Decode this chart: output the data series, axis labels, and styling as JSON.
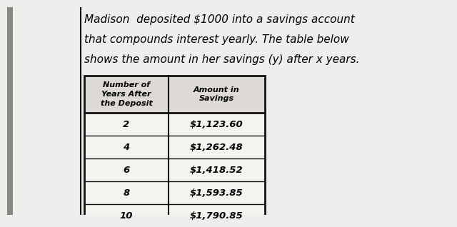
{
  "description_lines": [
    "Madison  deposited $1000 into a savings account",
    "that compounds interest yearly. The table below",
    "shows the amount in her savings (y) after x years."
  ],
  "col1_header": "Number of\nYears After\nthe Deposit",
  "col2_header": "Amount in\nSavings",
  "rows": [
    [
      "2",
      "$1,123.60"
    ],
    [
      "4",
      "$1,262.48"
    ],
    [
      "6",
      "$1,418.52"
    ],
    [
      "8",
      "$1,593.85"
    ],
    [
      "10",
      "$1,790.85"
    ]
  ],
  "paper_bg": "#f0eeec",
  "table_bg": "#f5f3f0",
  "header_bg": "#dddad6",
  "text_color": "#000000",
  "border_color": "#111111",
  "left_bar_color": "#888880",
  "desc_fontsize": 11.0,
  "header_fontsize": 8.0,
  "data_fontsize": 9.5
}
